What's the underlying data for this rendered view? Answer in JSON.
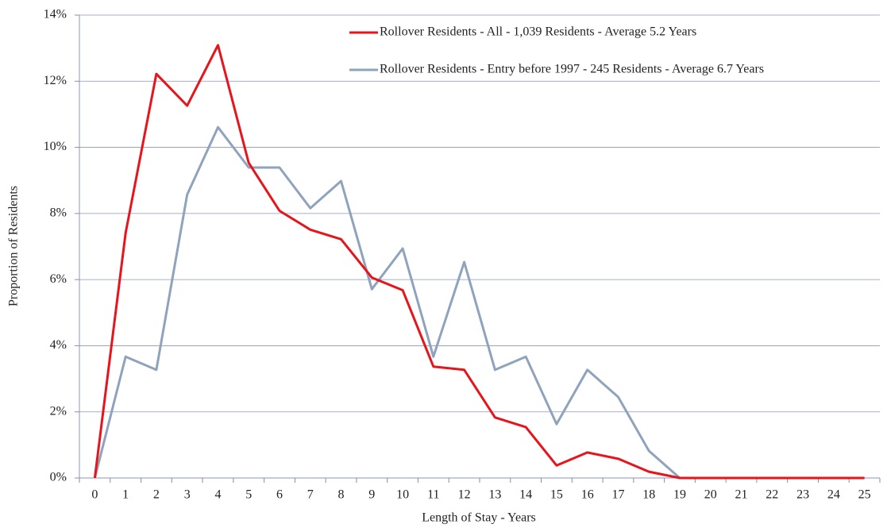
{
  "chart_data": {
    "type": "line",
    "x_label": "Length of Stay - Years",
    "y_label": "Proportion of Residents",
    "categories": [
      "0",
      "1",
      "2",
      "3",
      "4",
      "5",
      "6",
      "7",
      "8",
      "9",
      "10",
      "11",
      "12",
      "13",
      "14",
      "15",
      "16",
      "17",
      "18",
      "19",
      "20",
      "21",
      "22",
      "23",
      "24",
      "25"
    ],
    "series": [
      {
        "name": "Rollover Residents - All - 1,039 Residents - Average 5.2 Years",
        "color": "#e8141b",
        "values": [
          0,
          7.41,
          12.22,
          11.26,
          13.09,
          9.53,
          8.08,
          7.51,
          7.22,
          6.06,
          5.68,
          3.37,
          3.27,
          1.83,
          1.54,
          0.38,
          0.77,
          0.58,
          0.19,
          0,
          0,
          0,
          0,
          0,
          0,
          0
        ]
      },
      {
        "name": "Rollover Residents - Entry before 1997 - 245 Residents - Average 6.7 Years",
        "color": "#8fa3bd",
        "values": [
          0,
          3.67,
          3.27,
          8.57,
          10.61,
          9.39,
          9.39,
          8.16,
          8.98,
          5.71,
          6.94,
          3.67,
          6.53,
          3.27,
          3.67,
          1.63,
          3.27,
          2.45,
          0.82,
          0,
          0,
          0,
          0,
          0,
          0,
          0
        ]
      }
    ],
    "ylim": [
      0,
      14
    ],
    "yticks": [
      {
        "value": 0,
        "label": "0%"
      },
      {
        "value": 2,
        "label": "2%"
      },
      {
        "value": 4,
        "label": "4%"
      },
      {
        "value": 6,
        "label": "6%"
      },
      {
        "value": 8,
        "label": "8%"
      },
      {
        "value": 10,
        "label": "10%"
      },
      {
        "value": 12,
        "label": "12%"
      },
      {
        "value": 14,
        "label": "14%"
      }
    ],
    "grid": true,
    "legend": "top-right"
  }
}
